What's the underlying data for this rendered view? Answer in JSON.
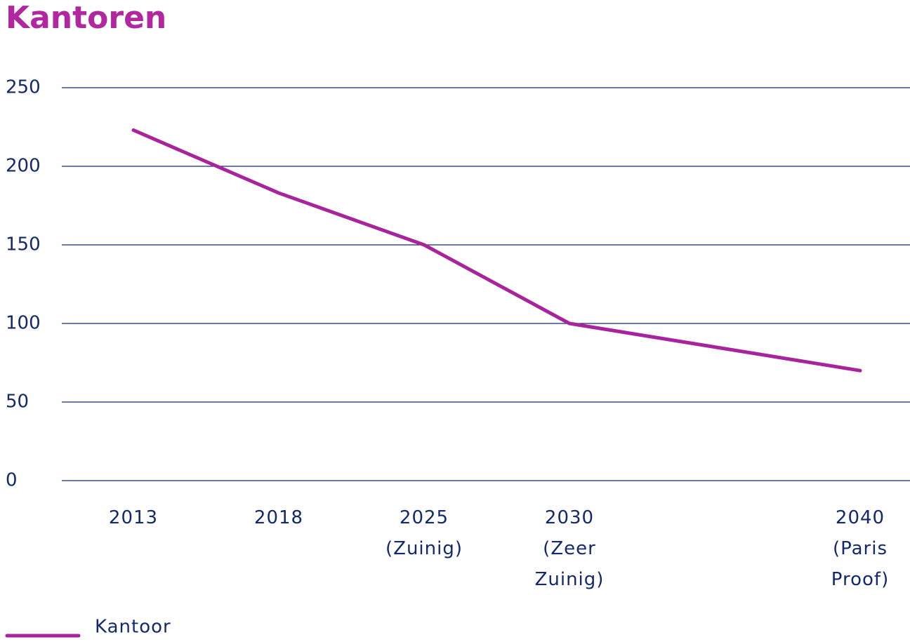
{
  "chart_data": {
    "type": "line",
    "title": "Kantoren",
    "categories": [
      "2013",
      "2018",
      "2025\n(Zuinig)",
      "2030\n(Zeer\nZuinig)",
      null,
      "2040\n(Paris\nProof)"
    ],
    "series": [
      {
        "name": "Kantoor",
        "color": "#a8249c",
        "values": [
          223,
          183,
          150,
          100,
          85,
          70
        ]
      }
    ],
    "ylim": [
      0,
      250
    ],
    "yticks": [
      0,
      50,
      100,
      150,
      200,
      250
    ],
    "grid": true,
    "legend": "bottom-left"
  }
}
